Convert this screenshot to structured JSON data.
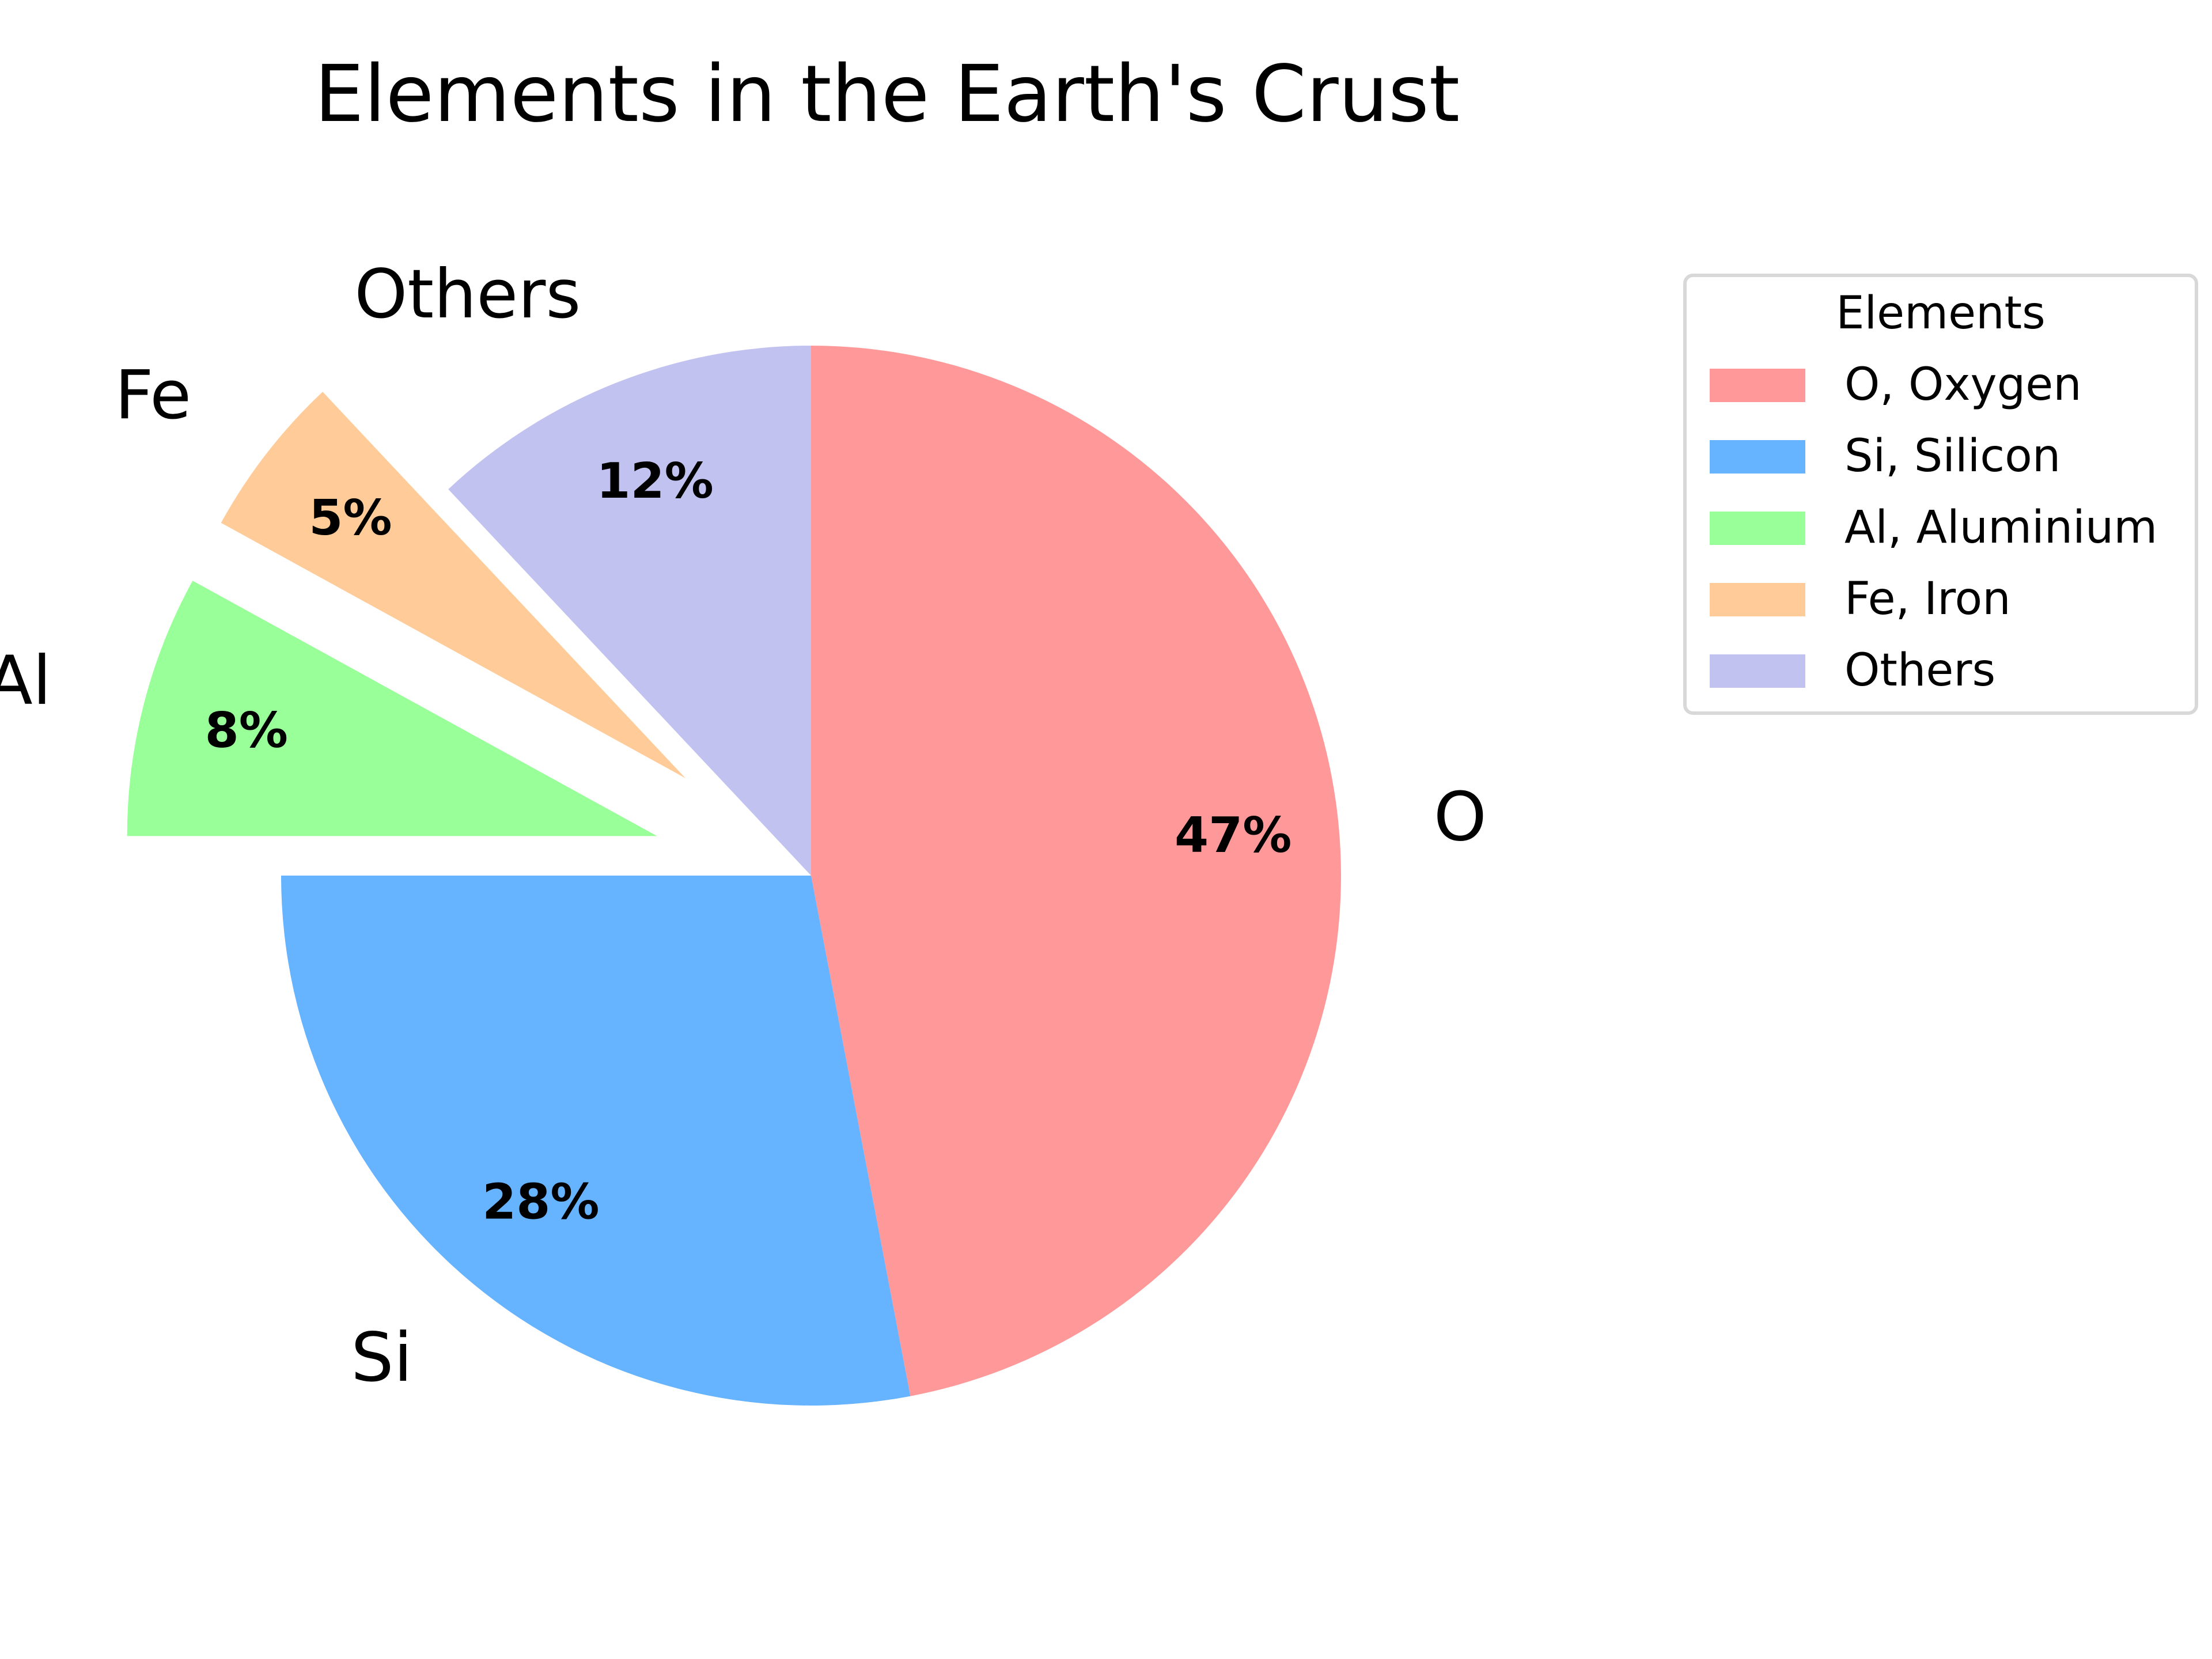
{
  "chart_data": {
    "type": "pie",
    "title": "Elements in the Earth's Crust",
    "start_angle_deg": 90,
    "direction": "clockwise",
    "slices": [
      {
        "label": "O",
        "legend": "O, Oxygen",
        "value": 47,
        "pct_label": "47%",
        "color": "#ff9999",
        "exploded": false
      },
      {
        "label": "Si",
        "legend": "Si, Silicon",
        "value": 28,
        "pct_label": "28%",
        "color": "#66b3ff",
        "exploded": false
      },
      {
        "label": "Al",
        "legend": "Al, Aluminium",
        "value": 8,
        "pct_label": "8%",
        "color": "#99ff99",
        "exploded": true
      },
      {
        "label": "Fe",
        "legend": "Fe, Iron",
        "value": 5,
        "pct_label": "5%",
        "color": "#ffcc99",
        "exploded": true
      },
      {
        "label": "Others",
        "legend": "Others",
        "value": 12,
        "pct_label": "12%",
        "color": "#c2c2f0",
        "exploded": false
      }
    ],
    "legend": {
      "title": "Elements",
      "placement": "upper-right, outside"
    }
  }
}
